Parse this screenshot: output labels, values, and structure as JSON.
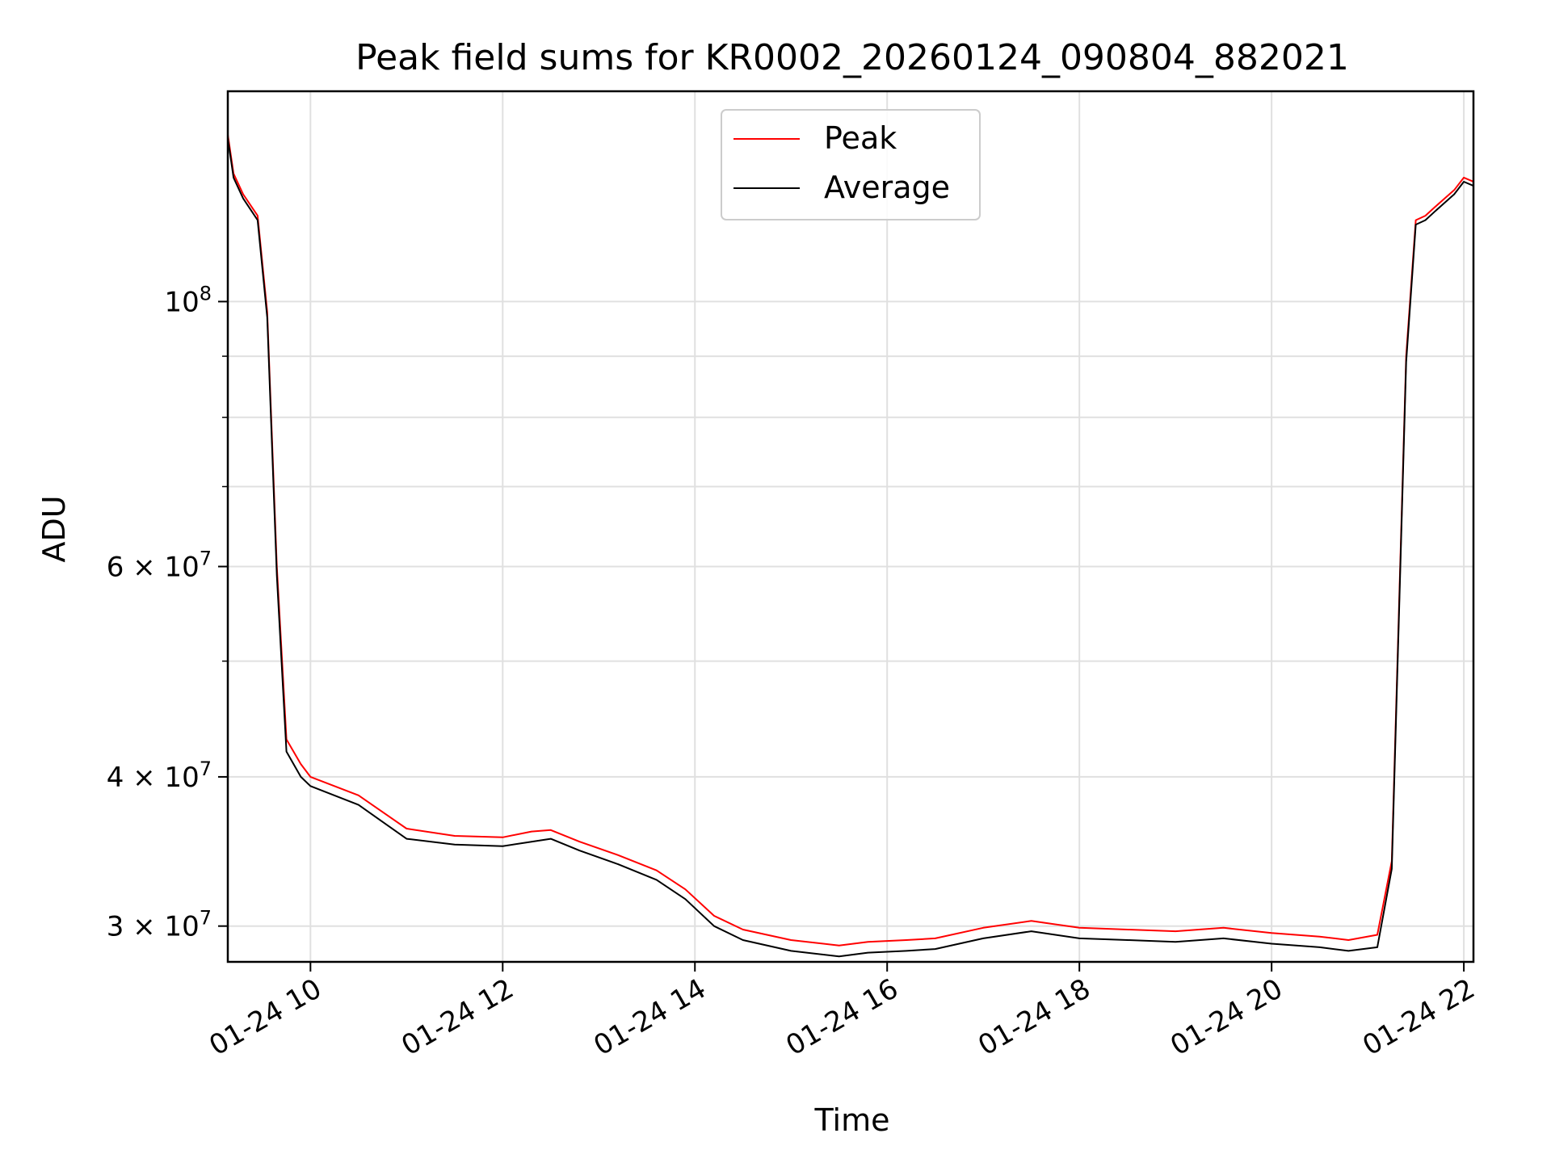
{
  "chart_data": {
    "type": "line",
    "title": "Peak field sums for KR0002_20260124_090804_882021",
    "xlabel": "Time",
    "ylabel": "ADU",
    "yscale": "log",
    "ylim": [
      28000000,
      150000000
    ],
    "xlim_hours": [
      9.14,
      22.1
    ],
    "grid": true,
    "legend_position": "upper center",
    "x_tick_hours": [
      10,
      12,
      14,
      16,
      18,
      20,
      22
    ],
    "x_tick_labels": [
      "01-24 10",
      "01-24 12",
      "01-24 14",
      "01-24 16",
      "01-24 18",
      "01-24 20",
      "01-24 22"
    ],
    "y_major_ticks": [
      {
        "value": 100000000,
        "base": "10",
        "exp": "8",
        "mantissa": ""
      },
      {
        "value": 60000000,
        "base": "10",
        "exp": "7",
        "mantissa": "6 × "
      },
      {
        "value": 40000000,
        "base": "10",
        "exp": "7",
        "mantissa": "4 × "
      },
      {
        "value": 30000000,
        "base": "10",
        "exp": "7",
        "mantissa": "3 × "
      }
    ],
    "y_minor_ticks": [
      90000000,
      80000000,
      70000000,
      50000000
    ],
    "series": [
      {
        "name": "Peak",
        "color": "#ff0000",
        "x_hours": [
          9.14,
          9.2,
          9.3,
          9.45,
          9.55,
          9.65,
          9.75,
          9.9,
          10.0,
          10.5,
          11.0,
          11.5,
          12.0,
          12.3,
          12.5,
          12.8,
          13.2,
          13.6,
          13.9,
          14.2,
          14.5,
          15.0,
          15.5,
          15.8,
          16.2,
          16.5,
          17.0,
          17.5,
          18.0,
          18.5,
          19.0,
          19.5,
          20.0,
          20.5,
          20.8,
          21.1,
          21.25,
          21.4,
          21.5,
          21.6,
          21.7,
          21.9,
          22.0,
          22.1
        ],
        "values": [
          138000000,
          128000000,
          123000000,
          118000000,
          98000000,
          60000000,
          43000000,
          41000000,
          40000000,
          38600000,
          36200000,
          35700000,
          35600000,
          36000000,
          36100000,
          35300000,
          34400000,
          33400000,
          32200000,
          30600000,
          29800000,
          29200000,
          28900000,
          29100000,
          29200000,
          29300000,
          29900000,
          30300000,
          29900000,
          29800000,
          29700000,
          29900000,
          29600000,
          29400000,
          29200000,
          29500000,
          34000000,
          90000000,
          117000000,
          118000000,
          120000000,
          124000000,
          127000000,
          126000000
        ]
      },
      {
        "name": "Average",
        "color": "#000000",
        "x_hours": [
          9.14,
          9.2,
          9.3,
          9.45,
          9.55,
          9.65,
          9.75,
          9.9,
          10.0,
          10.5,
          11.0,
          11.5,
          12.0,
          12.3,
          12.5,
          12.8,
          13.2,
          13.6,
          13.9,
          14.2,
          14.5,
          15.0,
          15.5,
          15.8,
          16.2,
          16.5,
          17.0,
          17.5,
          18.0,
          18.5,
          19.0,
          19.5,
          20.0,
          20.5,
          20.8,
          21.1,
          21.25,
          21.4,
          21.5,
          21.6,
          21.7,
          21.9,
          22.0,
          22.1
        ],
        "values": [
          137000000,
          127000000,
          122000000,
          117000000,
          97000000,
          59000000,
          42000000,
          40000000,
          39300000,
          37900000,
          35500000,
          35100000,
          35000000,
          35300000,
          35500000,
          34700000,
          33800000,
          32800000,
          31600000,
          30000000,
          29200000,
          28600000,
          28300000,
          28500000,
          28600000,
          28700000,
          29300000,
          29700000,
          29300000,
          29200000,
          29100000,
          29300000,
          29000000,
          28800000,
          28600000,
          28800000,
          33500000,
          89000000,
          116000000,
          117000000,
          119000000,
          123000000,
          126000000,
          125000000
        ]
      }
    ]
  }
}
